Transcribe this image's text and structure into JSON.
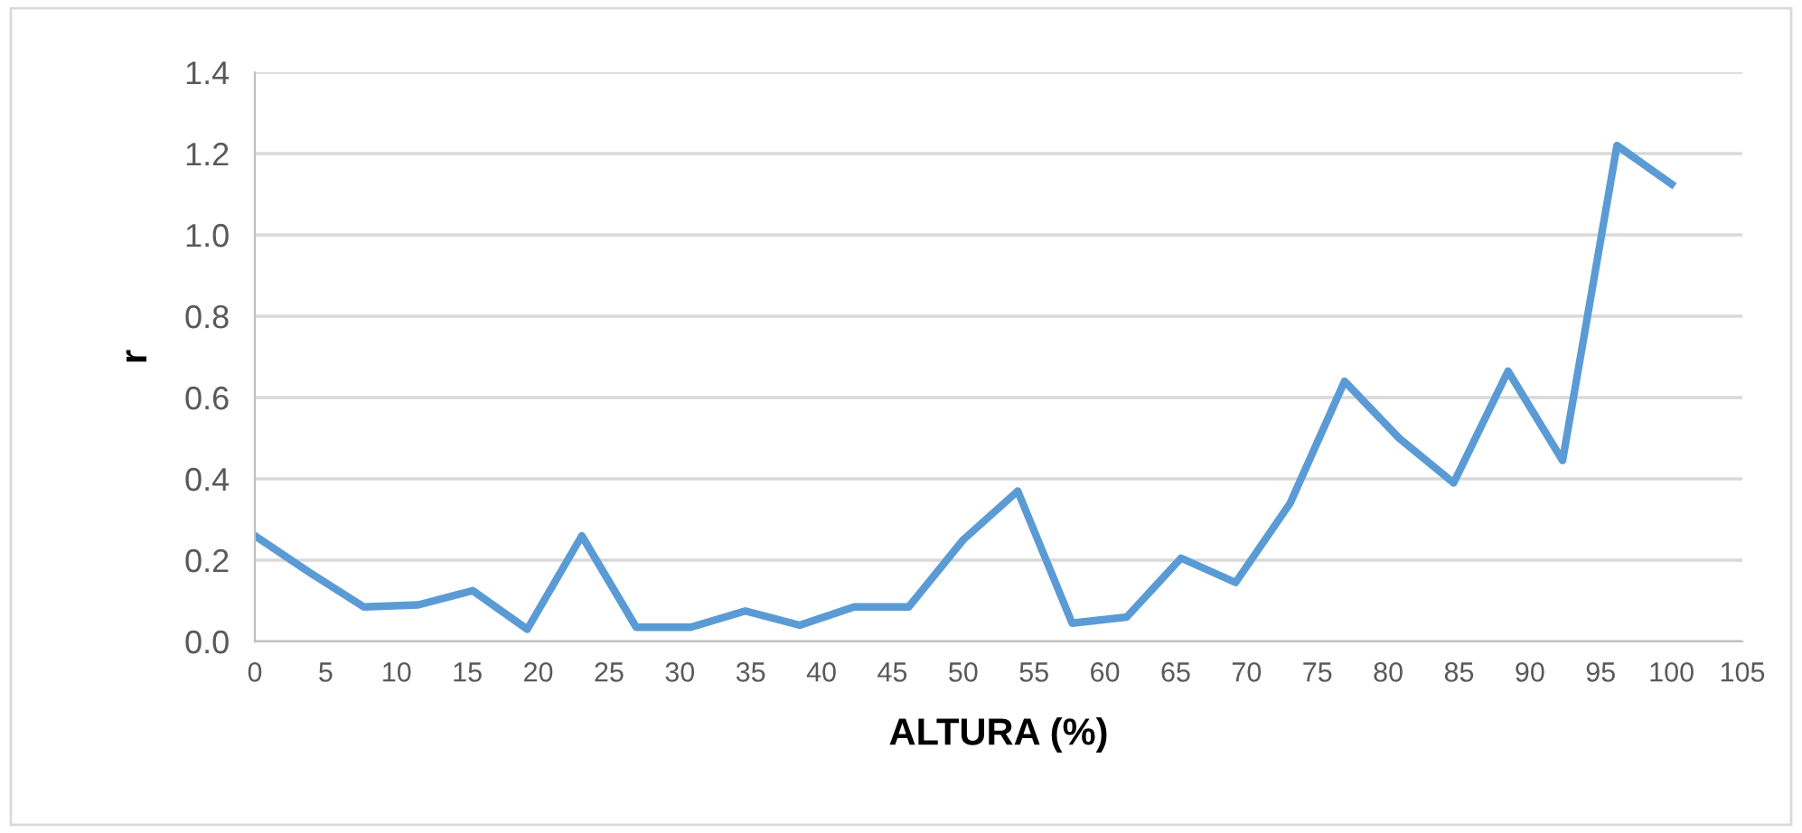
{
  "chart_data": {
    "type": "line",
    "xlabel": "ALTURA (%)",
    "ylabel": "r",
    "x": [
      0,
      3.85,
      7.69,
      11.54,
      15.38,
      19.23,
      23.08,
      26.92,
      30.77,
      34.62,
      38.46,
      42.31,
      46.15,
      50,
      53.85,
      57.69,
      61.54,
      65.38,
      69.23,
      73.08,
      76.92,
      80.77,
      84.62,
      88.46,
      92.31,
      96.15,
      100
    ],
    "series": [
      {
        "color": "#5b9bd5",
        "values": [
          0.26,
          0.17,
          0.085,
          0.09,
          0.125,
          0.03,
          0.26,
          0.035,
          0.035,
          0.075,
          0.04,
          0.085,
          0.085,
          0.25,
          0.37,
          0.045,
          0.06,
          0.205,
          0.145,
          0.34,
          0.64,
          0.5,
          0.39,
          0.665,
          0.445,
          1.22,
          1.125
        ]
      }
    ],
    "xlim": [
      0,
      105
    ],
    "xticks": [
      0,
      5,
      10,
      15,
      20,
      25,
      30,
      35,
      40,
      45,
      50,
      55,
      60,
      65,
      70,
      75,
      80,
      85,
      90,
      95,
      100,
      105
    ],
    "ylim": [
      0,
      1.4
    ],
    "yticks": [
      {
        "value": 0,
        "label": "0.0"
      },
      {
        "value": 0.2,
        "label": "0.2"
      },
      {
        "value": 0.4,
        "label": "0.4"
      },
      {
        "value": 0.6,
        "label": "0.6"
      },
      {
        "value": 0.8,
        "label": "0.8"
      },
      {
        "value": 1.0,
        "label": "1.0"
      },
      {
        "value": 1.2,
        "label": "1.2"
      },
      {
        "value": 1.4,
        "label": "1.4"
      }
    ],
    "grid": "y",
    "legend": false,
    "marker": "none",
    "line_style": "solid"
  }
}
